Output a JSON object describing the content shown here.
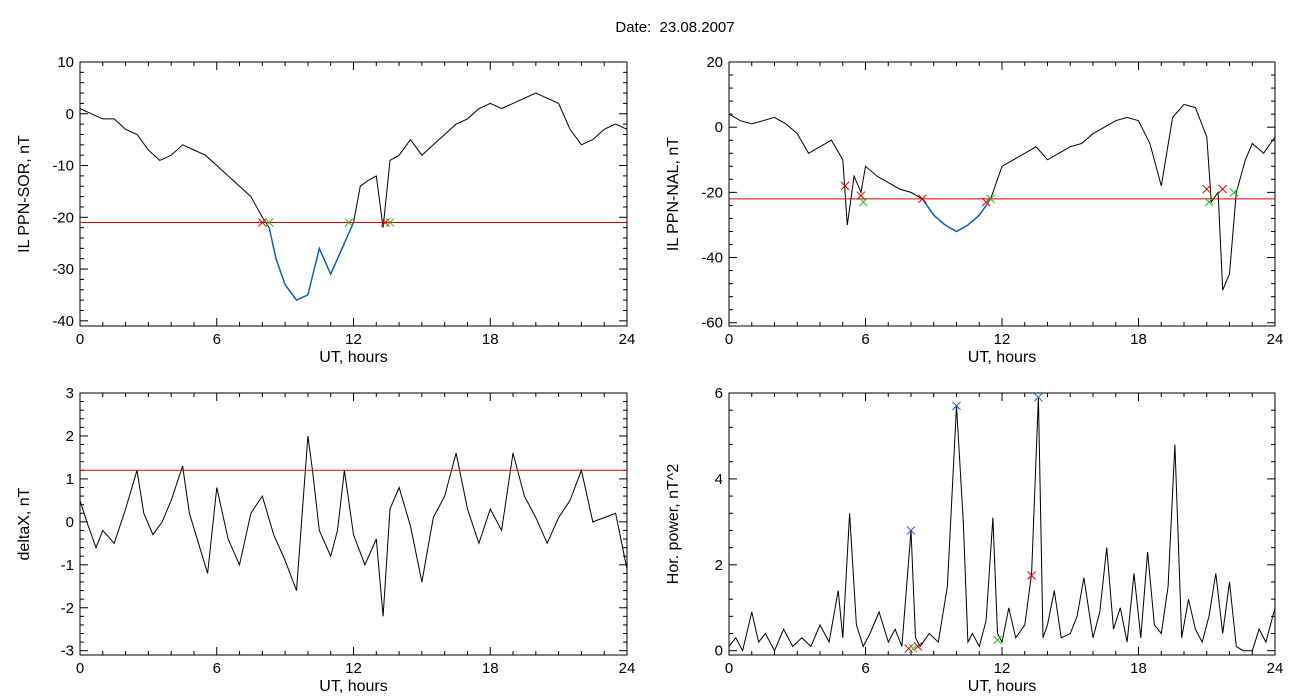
{
  "title": "Date:  23.08.2007",
  "colors": {
    "trace": "#000000",
    "highlight": "#1060c0",
    "threshold": "#e00000",
    "start_marker": "#e00000",
    "end_marker": "#20c020",
    "peak_marker": "#1060c0"
  },
  "chart_data": [
    {
      "id": "ppn-sor",
      "type": "line",
      "xlabel": "UT, hours",
      "ylabel": "IL PPN-SOR, nT",
      "xlim": [
        0,
        24
      ],
      "ylim": [
        -41,
        10
      ],
      "xticks": [
        "0",
        "6",
        "12",
        "18",
        "24"
      ],
      "yticks": [
        "10",
        "0",
        "-10",
        "-20",
        "-30",
        "-40"
      ],
      "threshold": -21,
      "series": [
        {
          "values_x": [
            0,
            0.5,
            1,
            1.5,
            2,
            2.5,
            3,
            3.5,
            4,
            4.5,
            5,
            5.5,
            6,
            6.5,
            7,
            7.5,
            8,
            8.3,
            8.6,
            9,
            9.5,
            10,
            10.5,
            11,
            11.5,
            12,
            12.3,
            12.6,
            13,
            13.3,
            13.6,
            14,
            14.5,
            15,
            15.5,
            16,
            16.5,
            17,
            17.5,
            18,
            18.5,
            19,
            19.5,
            20,
            20.5,
            21,
            21.5,
            22,
            22.5,
            23,
            23.5,
            24
          ],
          "values_y": [
            1,
            0,
            -1,
            -1,
            -3,
            -4,
            -7,
            -9,
            -8,
            -6,
            -7,
            -8,
            -10,
            -12,
            -14,
            -16,
            -20,
            -22,
            -28,
            -33,
            -36,
            -35,
            -26,
            -31,
            -26,
            -21,
            -14,
            -13,
            -12,
            -22,
            -9,
            -8,
            -5,
            -8,
            -6,
            -4,
            -2,
            -1,
            1,
            2,
            1,
            2,
            3,
            4,
            3,
            2,
            -3,
            -6,
            -5,
            -3,
            -2,
            -3
          ]
        }
      ],
      "highlight": {
        "x_range": [
          8.2,
          12.0
        ]
      },
      "markers": [
        {
          "x": 8.0,
          "y": -21,
          "type": "start"
        },
        {
          "x": 8.3,
          "y": -21,
          "type": "end"
        },
        {
          "x": 11.8,
          "y": -21,
          "type": "end"
        },
        {
          "x": 13.4,
          "y": -21,
          "type": "start"
        },
        {
          "x": 13.6,
          "y": -21,
          "type": "end"
        }
      ]
    },
    {
      "id": "ppn-nal",
      "type": "line",
      "xlabel": "UT, hours",
      "ylabel": "IL PPN-NAL, nT",
      "xlim": [
        0,
        24
      ],
      "ylim": [
        -61,
        20
      ],
      "xticks": [
        "0",
        "6",
        "12",
        "18",
        "24"
      ],
      "yticks": [
        "20",
        "0",
        "-20",
        "-40",
        "-60"
      ],
      "threshold": -22,
      "series": [
        {
          "values_x": [
            0,
            0.5,
            1,
            1.5,
            2,
            2.5,
            3,
            3.5,
            4,
            4.5,
            5,
            5.2,
            5.5,
            5.8,
            6,
            6.5,
            7,
            7.5,
            8,
            8.5,
            9,
            9.5,
            10,
            10.5,
            11,
            11.5,
            12,
            12.5,
            13,
            13.5,
            14,
            14.5,
            15,
            15.5,
            16,
            16.5,
            17,
            17.5,
            18,
            18.5,
            19,
            19.5,
            20,
            20.5,
            21,
            21.2,
            21.5,
            21.7,
            22,
            22.3,
            22.7,
            23,
            23.5,
            24
          ],
          "values_y": [
            4,
            2,
            1,
            2,
            3,
            1,
            -2,
            -8,
            -6,
            -4,
            -10,
            -30,
            -15,
            -20,
            -12,
            -15,
            -17,
            -19,
            -20,
            -22,
            -27,
            -30,
            -32,
            -30,
            -27,
            -22,
            -12,
            -10,
            -8,
            -6,
            -10,
            -8,
            -6,
            -5,
            -2,
            0,
            2,
            3,
            2,
            -5,
            -18,
            3,
            7,
            6,
            -3,
            -23,
            -20,
            -50,
            -45,
            -20,
            -10,
            -5,
            -8,
            -3
          ]
        }
      ],
      "highlight": {
        "x_range": [
          8.5,
          11.5
        ]
      },
      "markers": [
        {
          "x": 5.1,
          "y": -18,
          "type": "start"
        },
        {
          "x": 5.8,
          "y": -21,
          "type": "start"
        },
        {
          "x": 5.9,
          "y": -23,
          "type": "end"
        },
        {
          "x": 8.5,
          "y": -22,
          "type": "start"
        },
        {
          "x": 11.3,
          "y": -23,
          "type": "start"
        },
        {
          "x": 11.5,
          "y": -22,
          "type": "end"
        },
        {
          "x": 21.0,
          "y": -19,
          "type": "start"
        },
        {
          "x": 21.1,
          "y": -23,
          "type": "end"
        },
        {
          "x": 21.7,
          "y": -19,
          "type": "start"
        },
        {
          "x": 22.2,
          "y": -20,
          "type": "end"
        }
      ]
    },
    {
      "id": "deltax",
      "type": "line",
      "xlabel": "UT, hours",
      "ylabel": "deltaX, nT",
      "xlim": [
        0,
        24
      ],
      "ylim": [
        -3.1,
        3
      ],
      "xticks": [
        "0",
        "6",
        "12",
        "18",
        "24"
      ],
      "yticks": [
        "3",
        "2",
        "1",
        "0",
        "-1",
        "-2",
        "-3"
      ],
      "threshold": 1.2,
      "series": [
        {
          "values_x": [
            0,
            0.3,
            0.7,
            1,
            1.5,
            2,
            2.5,
            2.8,
            3.2,
            3.6,
            4,
            4.5,
            4.8,
            5.2,
            5.6,
            6,
            6.5,
            7,
            7.5,
            8,
            8.5,
            9,
            9.5,
            10,
            10.2,
            10.5,
            11,
            11.3,
            11.6,
            12,
            12.5,
            13,
            13.3,
            13.6,
            14,
            14.5,
            15,
            15.5,
            16,
            16.5,
            17,
            17.5,
            18,
            18.5,
            19,
            19.5,
            20,
            20.5,
            21,
            21.5,
            22,
            22.5,
            23,
            23.5,
            24
          ],
          "values_y": [
            0.5,
            0,
            -0.6,
            -0.2,
            -0.5,
            0.3,
            1.2,
            0.2,
            -0.3,
            0,
            0.5,
            1.3,
            0.2,
            -0.5,
            -1.2,
            0.8,
            -0.4,
            -1.0,
            0.2,
            0.6,
            -0.3,
            -0.9,
            -1.6,
            2.0,
            1.2,
            -0.2,
            -0.8,
            -0.2,
            1.2,
            -0.3,
            -1.0,
            -0.4,
            -2.2,
            0.3,
            0.8,
            -0.1,
            -1.4,
            0.1,
            0.6,
            1.6,
            0.3,
            -0.5,
            0.3,
            -0.2,
            1.6,
            0.6,
            0.1,
            -0.5,
            0.1,
            0.5,
            1.2,
            0.0,
            0.1,
            0.2,
            -1.1
          ]
        }
      ]
    },
    {
      "id": "hor-power",
      "type": "line",
      "xlabel": "UT, hours",
      "ylabel": "Hor. power, nT^2",
      "xlim": [
        0,
        24
      ],
      "ylim": [
        -0.1,
        6
      ],
      "xticks": [
        "0",
        "6",
        "12",
        "18",
        "24"
      ],
      "yticks": [
        "6",
        "4",
        "2",
        "0"
      ],
      "series": [
        {
          "values_x": [
            0,
            0.3,
            0.6,
            1,
            1.3,
            1.6,
            2,
            2.4,
            2.8,
            3.2,
            3.6,
            4,
            4.4,
            4.8,
            5.0,
            5.3,
            5.6,
            5.9,
            6.2,
            6.6,
            7,
            7.3,
            7.6,
            8.0,
            8.2,
            8.4,
            8.8,
            9.2,
            9.6,
            10.0,
            10.3,
            10.5,
            10.7,
            11,
            11.3,
            11.6,
            11.8,
            12,
            12.3,
            12.6,
            13,
            13.3,
            13.6,
            13.8,
            14,
            14.3,
            14.6,
            15,
            15.3,
            15.6,
            16,
            16.3,
            16.6,
            16.9,
            17.2,
            17.5,
            17.8,
            18.1,
            18.4,
            18.7,
            19,
            19.3,
            19.6,
            19.9,
            20.2,
            20.5,
            20.8,
            21.1,
            21.4,
            21.7,
            22,
            22.3,
            22.6,
            23,
            23.3,
            23.6,
            24
          ],
          "values_y": [
            0.1,
            0.3,
            0.0,
            0.9,
            0.2,
            0.4,
            0.0,
            0.5,
            0.1,
            0.3,
            0.1,
            0.6,
            0.2,
            1.4,
            0.3,
            3.2,
            0.6,
            0.1,
            0.4,
            0.9,
            0.2,
            0.5,
            0.1,
            2.8,
            0.3,
            0.1,
            0.4,
            0.2,
            1.5,
            5.7,
            3.0,
            0.2,
            0.4,
            0.1,
            0.7,
            3.1,
            0.4,
            0.2,
            1.0,
            0.3,
            0.6,
            1.8,
            5.9,
            0.3,
            0.6,
            1.4,
            0.3,
            0.4,
            0.8,
            1.7,
            0.3,
            0.9,
            2.4,
            0.5,
            1.0,
            0.2,
            1.8,
            0.3,
            2.3,
            0.6,
            0.4,
            1.5,
            4.8,
            0.3,
            1.2,
            0.5,
            0.2,
            0.8,
            1.8,
            0.4,
            1.6,
            0.1,
            0.0,
            0.0,
            0.5,
            0.2,
            1.0
          ]
        }
      ],
      "markers": [
        {
          "x": 8.0,
          "y": 2.8,
          "type": "peak"
        },
        {
          "x": 10.0,
          "y": 5.7,
          "type": "peak"
        },
        {
          "x": 13.6,
          "y": 5.9,
          "type": "peak"
        },
        {
          "x": 13.3,
          "y": 1.75,
          "type": "start"
        },
        {
          "x": 7.9,
          "y": 0.05,
          "type": "start"
        },
        {
          "x": 8.3,
          "y": 0.1,
          "type": "start"
        },
        {
          "x": 8.1,
          "y": 0.05,
          "type": "end"
        },
        {
          "x": 11.8,
          "y": 0.25,
          "type": "end"
        }
      ]
    }
  ]
}
